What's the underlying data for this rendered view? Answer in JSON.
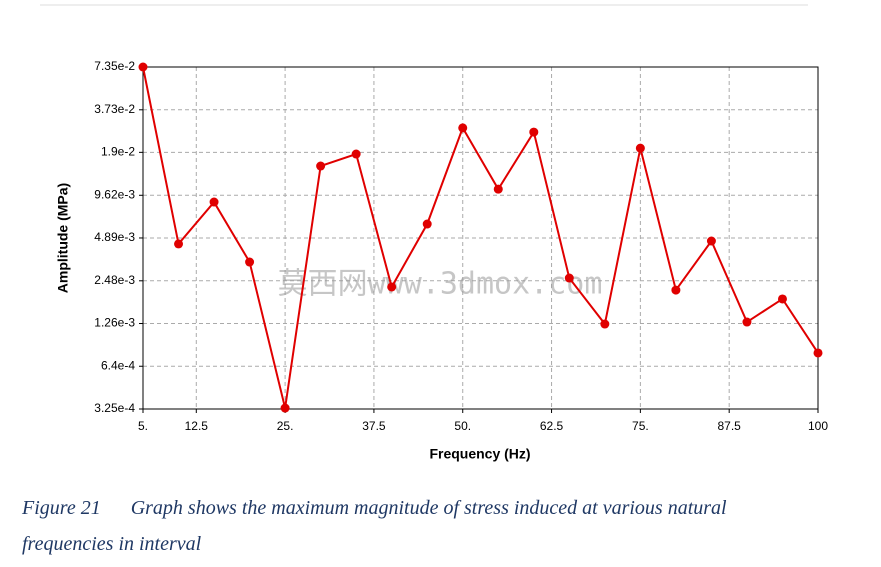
{
  "chart_data": {
    "type": "line",
    "x_label": "Frequency (Hz)",
    "y_label": "Amplitude (MPa)",
    "x": [
      5,
      10,
      15,
      20,
      25,
      30,
      35,
      40,
      45,
      50,
      55,
      60,
      65,
      70,
      75,
      80,
      85,
      90,
      95,
      100
    ],
    "series": [
      {
        "color": "#e00000",
        "values": [
          0.0735,
          0.00445,
          0.00864,
          0.00334,
          0.00033,
          0.0153,
          0.0185,
          0.00225,
          0.0061,
          0.028,
          0.0106,
          0.0262,
          0.00259,
          0.00125,
          0.0203,
          0.00214,
          0.00466,
          0.00129,
          0.00186,
          0.00079
        ]
      }
    ],
    "xlim": [
      5,
      100
    ],
    "xticks": [
      {
        "value": 5,
        "label": "5."
      },
      12.5,
      {
        "value": 25,
        "label": "25."
      },
      37.5,
      {
        "value": 50,
        "label": "50."
      },
      62.5,
      {
        "value": 75,
        "label": "75."
      },
      87.5,
      100
    ],
    "ylim": [
      0.000325,
      0.0735
    ],
    "log_y": true,
    "yticks": [
      {
        "value": 0.000325,
        "label": "3.25e-4"
      },
      {
        "value": 0.00064,
        "label": "6.4e-4"
      },
      {
        "value": 0.00126,
        "label": "1.26e-3"
      },
      {
        "value": 0.00248,
        "label": "2.48e-3"
      },
      {
        "value": 0.00489,
        "label": "4.89e-3"
      },
      {
        "value": 0.00962,
        "label": "9.62e-3"
      },
      {
        "value": 0.019,
        "label": "1.9e-2"
      },
      {
        "value": 0.0373,
        "label": "3.73e-2"
      },
      {
        "value": 0.0735,
        "label": "7.35e-2"
      }
    ],
    "grid": true
  },
  "watermark": "莫西网www.3dmox.com",
  "caption": {
    "label": "Figure 21",
    "text": "Graph shows the maximum magnitude of stress induced at various natural frequencies in interval"
  }
}
